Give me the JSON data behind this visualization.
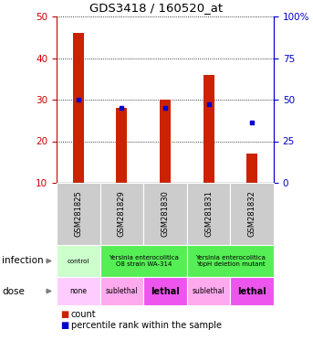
{
  "title": "GDS3418 / 160520_at",
  "samples": [
    "GSM281825",
    "GSM281829",
    "GSM281830",
    "GSM281831",
    "GSM281832"
  ],
  "bar_heights": [
    46,
    28,
    30,
    36,
    17
  ],
  "bar_bottoms": [
    10,
    10,
    10,
    10,
    10
  ],
  "percentile_values": [
    30,
    28,
    28,
    29,
    24.5
  ],
  "bar_color": "#cc2200",
  "percentile_color": "#0000cc",
  "ylim_left": [
    10,
    50
  ],
  "ylim_right": [
    0,
    100
  ],
  "yticks_left": [
    10,
    20,
    30,
    40,
    50
  ],
  "yticks_right": [
    0,
    25,
    50,
    75,
    100
  ],
  "left_axis_color": "#cc0000",
  "right_axis_color": "#0000cc",
  "grid_color": "#000000",
  "sample_box_color": "#cccccc",
  "infection_control_color": "#ccffcc",
  "infection_yersinia_color": "#55ee55",
  "dose_none_color": "#ffccff",
  "dose_sublethal_color": "#ffaaee",
  "dose_lethal_color": "#ee55ee"
}
